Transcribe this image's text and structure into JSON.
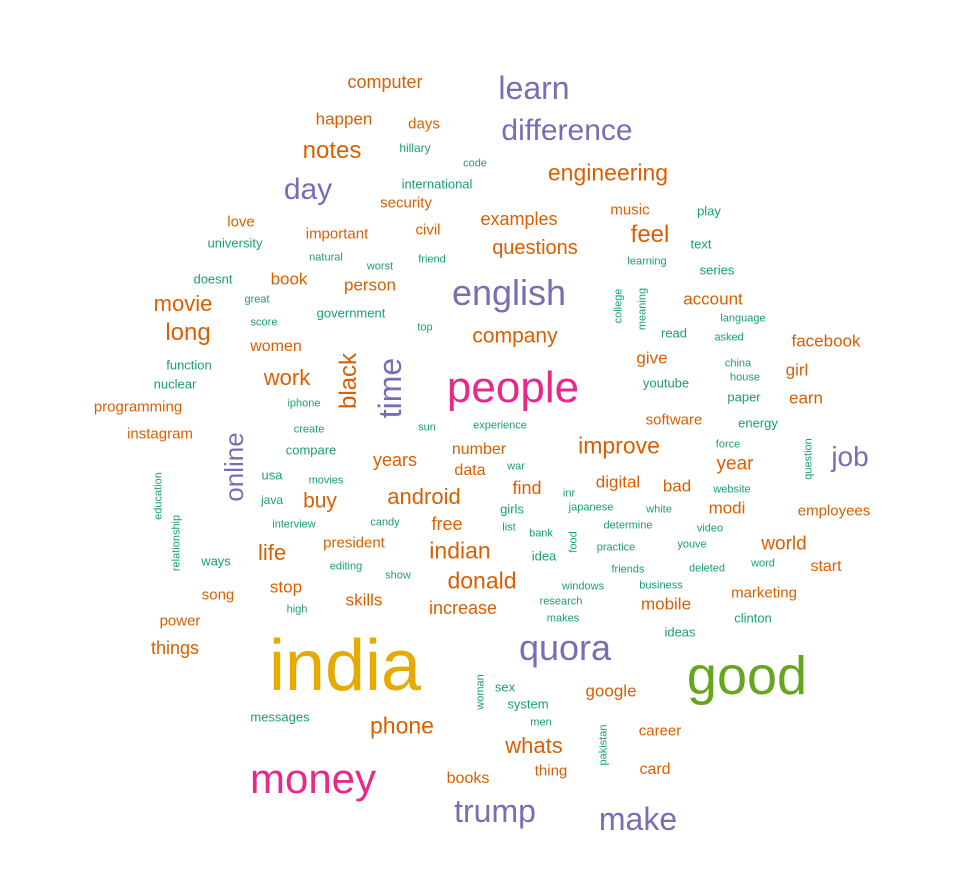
{
  "chart_data": {
    "type": "wordcloud",
    "palette": {
      "tier1": "#1b9e77",
      "tier2": "#d95f02",
      "tier3": "#7570b3",
      "tier4": "#e7298a",
      "tier5": "#66a61e",
      "tier6": "#e6ab02"
    },
    "words": [
      {
        "text": "india",
        "tier": 6
      },
      {
        "text": "good",
        "tier": 5
      },
      {
        "text": "people",
        "tier": 4
      },
      {
        "text": "money",
        "tier": 4
      },
      {
        "text": "english",
        "tier": 3
      },
      {
        "text": "quora",
        "tier": 3
      },
      {
        "text": "learn",
        "tier": 3
      },
      {
        "text": "difference",
        "tier": 3
      },
      {
        "text": "trump",
        "tier": 3
      },
      {
        "text": "make",
        "tier": 3
      },
      {
        "text": "time",
        "tier": 3
      },
      {
        "text": "day",
        "tier": 3
      },
      {
        "text": "online",
        "tier": 3
      },
      {
        "text": "job",
        "tier": 3
      },
      {
        "text": "computer",
        "tier": 2
      },
      {
        "text": "happen",
        "tier": 2
      },
      {
        "text": "days",
        "tier": 2
      },
      {
        "text": "notes",
        "tier": 2
      },
      {
        "text": "engineering",
        "tier": 2
      },
      {
        "text": "security",
        "tier": 2
      },
      {
        "text": "love",
        "tier": 2
      },
      {
        "text": "important",
        "tier": 2
      },
      {
        "text": "civil",
        "tier": 2
      },
      {
        "text": "examples",
        "tier": 2
      },
      {
        "text": "music",
        "tier": 2
      },
      {
        "text": "feel",
        "tier": 2
      },
      {
        "text": "questions",
        "tier": 2
      },
      {
        "text": "book",
        "tier": 2
      },
      {
        "text": "person",
        "tier": 2
      },
      {
        "text": "movie",
        "tier": 2
      },
      {
        "text": "account",
        "tier": 2
      },
      {
        "text": "long",
        "tier": 2
      },
      {
        "text": "company",
        "tier": 2
      },
      {
        "text": "facebook",
        "tier": 2
      },
      {
        "text": "women",
        "tier": 2
      },
      {
        "text": "give",
        "tier": 2
      },
      {
        "text": "black",
        "tier": 2
      },
      {
        "text": "girl",
        "tier": 2
      },
      {
        "text": "work",
        "tier": 2
      },
      {
        "text": "earn",
        "tier": 2
      },
      {
        "text": "programming",
        "tier": 2
      },
      {
        "text": "software",
        "tier": 2
      },
      {
        "text": "instagram",
        "tier": 2
      },
      {
        "text": "improve",
        "tier": 2
      },
      {
        "text": "number",
        "tier": 2
      },
      {
        "text": "years",
        "tier": 2
      },
      {
        "text": "year",
        "tier": 2
      },
      {
        "text": "data",
        "tier": 2
      },
      {
        "text": "android",
        "tier": 2
      },
      {
        "text": "find",
        "tier": 2
      },
      {
        "text": "digital",
        "tier": 2
      },
      {
        "text": "bad",
        "tier": 2
      },
      {
        "text": "buy",
        "tier": 2
      },
      {
        "text": "modi",
        "tier": 2
      },
      {
        "text": "employees",
        "tier": 2
      },
      {
        "text": "free",
        "tier": 2
      },
      {
        "text": "life",
        "tier": 2
      },
      {
        "text": "president",
        "tier": 2
      },
      {
        "text": "indian",
        "tier": 2
      },
      {
        "text": "world",
        "tier": 2
      },
      {
        "text": "donald",
        "tier": 2
      },
      {
        "text": "start",
        "tier": 2
      },
      {
        "text": "stop",
        "tier": 2
      },
      {
        "text": "song",
        "tier": 2
      },
      {
        "text": "marketing",
        "tier": 2
      },
      {
        "text": "skills",
        "tier": 2
      },
      {
        "text": "increase",
        "tier": 2
      },
      {
        "text": "mobile",
        "tier": 2
      },
      {
        "text": "power",
        "tier": 2
      },
      {
        "text": "things",
        "tier": 2
      },
      {
        "text": "google",
        "tier": 2
      },
      {
        "text": "phone",
        "tier": 2
      },
      {
        "text": "career",
        "tier": 2
      },
      {
        "text": "whats",
        "tier": 2
      },
      {
        "text": "card",
        "tier": 2
      },
      {
        "text": "thing",
        "tier": 2
      },
      {
        "text": "books",
        "tier": 2
      },
      {
        "text": "hillary",
        "tier": 1
      },
      {
        "text": "code",
        "tier": 1
      },
      {
        "text": "international",
        "tier": 1
      },
      {
        "text": "play",
        "tier": 1
      },
      {
        "text": "university",
        "tier": 1
      },
      {
        "text": "natural",
        "tier": 1
      },
      {
        "text": "worst",
        "tier": 1
      },
      {
        "text": "friend",
        "tier": 1
      },
      {
        "text": "learning",
        "tier": 1
      },
      {
        "text": "text",
        "tier": 1
      },
      {
        "text": "series",
        "tier": 1
      },
      {
        "text": "doesnt",
        "tier": 1
      },
      {
        "text": "great",
        "tier": 1
      },
      {
        "text": "government",
        "tier": 1
      },
      {
        "text": "score",
        "tier": 1
      },
      {
        "text": "top",
        "tier": 1
      },
      {
        "text": "college",
        "tier": 1
      },
      {
        "text": "meaning",
        "tier": 1
      },
      {
        "text": "language",
        "tier": 1
      },
      {
        "text": "read",
        "tier": 1
      },
      {
        "text": "asked",
        "tier": 1
      },
      {
        "text": "function",
        "tier": 1
      },
      {
        "text": "nuclear",
        "tier": 1
      },
      {
        "text": "china",
        "tier": 1
      },
      {
        "text": "house",
        "tier": 1
      },
      {
        "text": "youtube",
        "tier": 1
      },
      {
        "text": "paper",
        "tier": 1
      },
      {
        "text": "iphone",
        "tier": 1
      },
      {
        "text": "energy",
        "tier": 1
      },
      {
        "text": "create",
        "tier": 1
      },
      {
        "text": "sun",
        "tier": 1
      },
      {
        "text": "experience",
        "tier": 1
      },
      {
        "text": "force",
        "tier": 1
      },
      {
        "text": "question",
        "tier": 1
      },
      {
        "text": "compare",
        "tier": 1
      },
      {
        "text": "education",
        "tier": 1
      },
      {
        "text": "usa",
        "tier": 1
      },
      {
        "text": "war",
        "tier": 1
      },
      {
        "text": "movies",
        "tier": 1
      },
      {
        "text": "java",
        "tier": 1
      },
      {
        "text": "inr",
        "tier": 1
      },
      {
        "text": "website",
        "tier": 1
      },
      {
        "text": "relationship",
        "tier": 1
      },
      {
        "text": "girls",
        "tier": 1
      },
      {
        "text": "japanese",
        "tier": 1
      },
      {
        "text": "white",
        "tier": 1
      },
      {
        "text": "interview",
        "tier": 1
      },
      {
        "text": "candy",
        "tier": 1
      },
      {
        "text": "list",
        "tier": 1
      },
      {
        "text": "determine",
        "tier": 1
      },
      {
        "text": "video",
        "tier": 1
      },
      {
        "text": "bank",
        "tier": 1
      },
      {
        "text": "food",
        "tier": 1
      },
      {
        "text": "practice",
        "tier": 1
      },
      {
        "text": "youve",
        "tier": 1
      },
      {
        "text": "ways",
        "tier": 1
      },
      {
        "text": "idea",
        "tier": 1
      },
      {
        "text": "editing",
        "tier": 1
      },
      {
        "text": "show",
        "tier": 1
      },
      {
        "text": "friends",
        "tier": 1
      },
      {
        "text": "deleted",
        "tier": 1
      },
      {
        "text": "windows",
        "tier": 1
      },
      {
        "text": "business",
        "tier": 1
      },
      {
        "text": "research",
        "tier": 1
      },
      {
        "text": "makes",
        "tier": 1
      },
      {
        "text": "high",
        "tier": 1
      },
      {
        "text": "clinton",
        "tier": 1
      },
      {
        "text": "ideas",
        "tier": 1
      },
      {
        "text": "woman",
        "tier": 1
      },
      {
        "text": "sex",
        "tier": 1
      },
      {
        "text": "system",
        "tier": 1
      },
      {
        "text": "messages",
        "tier": 1
      },
      {
        "text": "men",
        "tier": 1
      },
      {
        "text": "pakistan",
        "tier": 1
      },
      {
        "text": "word",
        "tier": 1
      }
    ]
  }
}
